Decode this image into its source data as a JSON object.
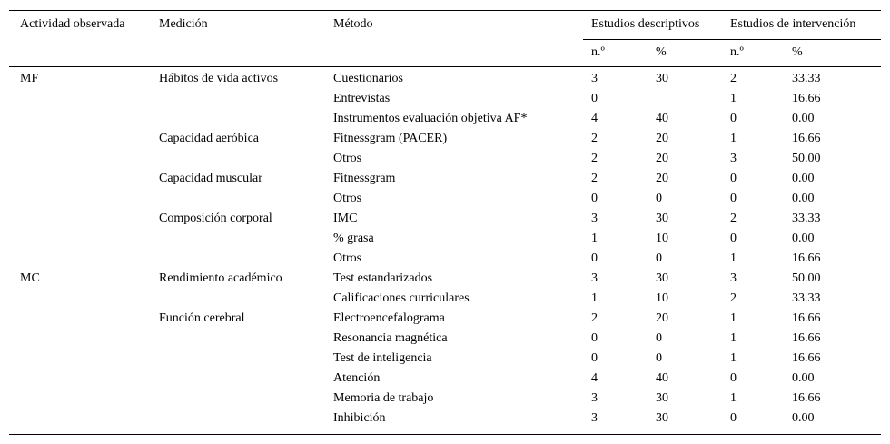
{
  "table": {
    "header": {
      "columns": [
        "Actividad observada",
        "Medición",
        "Método"
      ],
      "groups": [
        "Estudios descriptivos",
        "Estudios de intervención"
      ],
      "sub": [
        "n.º",
        "%",
        "n.º",
        "%"
      ]
    },
    "rows": [
      [
        "MF",
        "Hábitos de vida activos",
        "Cuestionarios",
        "3",
        "30",
        "2",
        "33.33"
      ],
      [
        null,
        null,
        "Entrevistas",
        "0",
        null,
        "1",
        "16.66"
      ],
      [
        null,
        null,
        "Instrumentos evaluación objetiva AF*",
        "4",
        "40",
        "0",
        "0.00"
      ],
      [
        null,
        "Capacidad aeróbica",
        "Fitnessgram (PACER)",
        "2",
        "20",
        "1",
        "16.66"
      ],
      [
        null,
        null,
        "Otros",
        "2",
        "20",
        "3",
        "50.00"
      ],
      [
        null,
        "Capacidad muscular",
        "Fitnessgram",
        "2",
        "20",
        "0",
        "0.00"
      ],
      [
        null,
        null,
        "Otros",
        "0",
        "0",
        "0",
        "0.00"
      ],
      [
        null,
        "Composición corporal",
        "IMC",
        "3",
        "30",
        "2",
        "33.33"
      ],
      [
        null,
        null,
        "% grasa",
        "1",
        "10",
        "0",
        "0.00"
      ],
      [
        null,
        null,
        "Otros",
        "0",
        "0",
        "1",
        "16.66"
      ],
      [
        "MC",
        "Rendimiento académico",
        "Test estandarizados",
        "3",
        "30",
        "3",
        "50.00"
      ],
      [
        null,
        null,
        "Calificaciones curriculares",
        "1",
        "10",
        "2",
        "33.33"
      ],
      [
        null,
        "Función cerebral",
        "Electroencefalograma",
        "2",
        "20",
        "1",
        "16.66"
      ],
      [
        null,
        null,
        "Resonancia magnética",
        "0",
        "0",
        "1",
        "16.66"
      ],
      [
        null,
        null,
        "Test de inteligencia",
        "0",
        "0",
        "1",
        "16.66"
      ],
      [
        null,
        null,
        "Atención",
        "4",
        "40",
        "0",
        "0.00"
      ],
      [
        null,
        null,
        "Memoria de trabajo",
        "3",
        "30",
        "1",
        "16.66"
      ],
      [
        null,
        null,
        "Inhibición",
        "3",
        "30",
        "0",
        "0.00"
      ]
    ]
  }
}
